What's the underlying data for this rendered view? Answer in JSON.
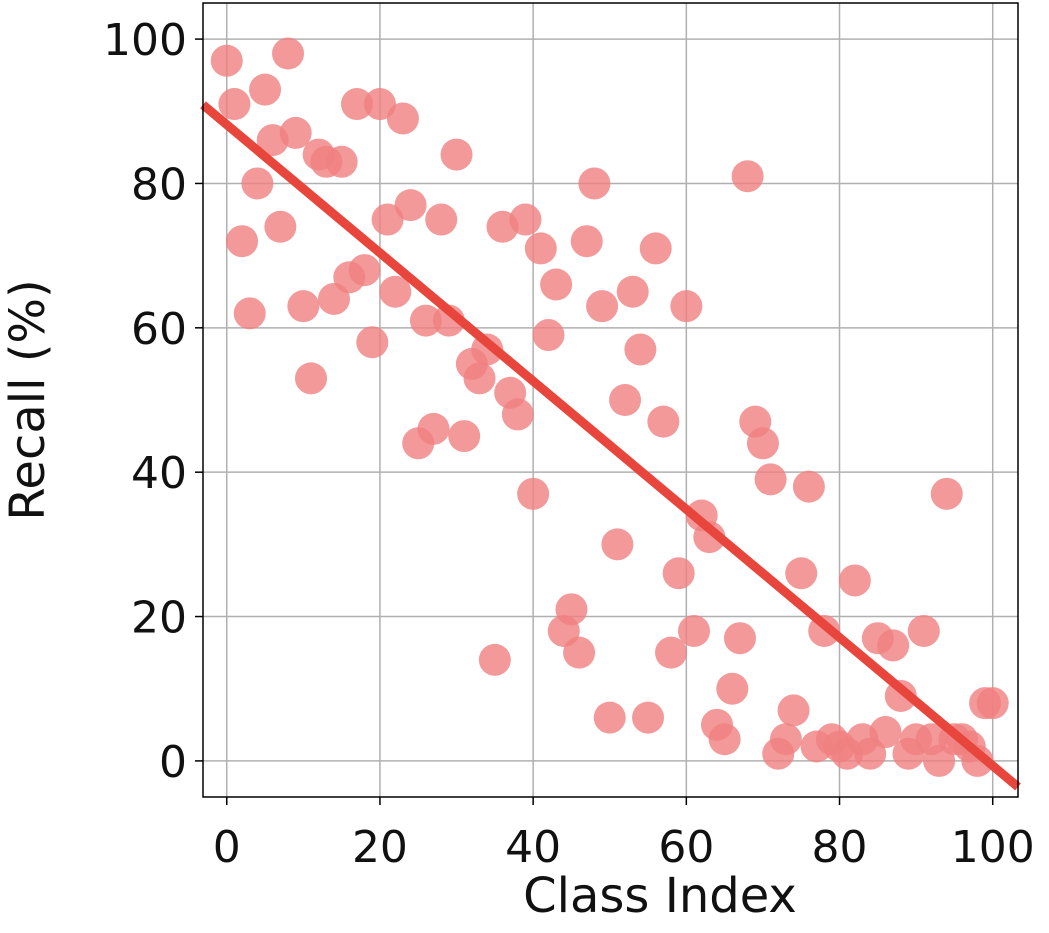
{
  "chart_data": {
    "type": "scatter",
    "x_label": "Class Index",
    "y_label": "Recall (%)",
    "x": [
      0,
      1,
      2,
      3,
      4,
      5,
      6,
      7,
      8,
      9,
      10,
      11,
      12,
      13,
      14,
      15,
      16,
      17,
      18,
      19,
      20,
      21,
      22,
      23,
      24,
      25,
      26,
      27,
      28,
      29,
      30,
      31,
      32,
      33,
      34,
      35,
      36,
      37,
      38,
      39,
      40,
      41,
      42,
      43,
      44,
      45,
      46,
      47,
      48,
      49,
      50,
      51,
      52,
      53,
      54,
      55,
      56,
      57,
      58,
      59,
      60,
      61,
      62,
      63,
      64,
      65,
      66,
      67,
      68,
      69,
      70,
      71,
      72,
      73,
      74,
      75,
      76,
      77,
      78,
      79,
      80,
      81,
      82,
      83,
      84,
      85,
      86,
      87,
      88,
      89,
      90,
      91,
      92,
      93,
      94,
      95,
      96,
      97,
      98,
      99,
      100
    ],
    "y": [
      97,
      91,
      72,
      62,
      80,
      93,
      86,
      74,
      98,
      87,
      63,
      53,
      84,
      83,
      64,
      83,
      67,
      91,
      68,
      58,
      91,
      75,
      65,
      89,
      77,
      44,
      61,
      46,
      75,
      61,
      84,
      45,
      55,
      53,
      57,
      14,
      74,
      51,
      48,
      75,
      37,
      71,
      59,
      66,
      18,
      21,
      15,
      72,
      80,
      63,
      6,
      30,
      50,
      65,
      57,
      6,
      71,
      47,
      15,
      26,
      63,
      18,
      34,
      31,
      5,
      3,
      10,
      17,
      81,
      47,
      44,
      39,
      1,
      3,
      7,
      26,
      38,
      2,
      18,
      3,
      2,
      1,
      25,
      3,
      1,
      17,
      4,
      16,
      9,
      1,
      3,
      18,
      3,
      0,
      37,
      3,
      3,
      2,
      0,
      8,
      8
    ],
    "color": "#f08080",
    "trend_line": {
      "x": [
        -3.1,
        103.3
      ],
      "y": [
        90.9,
        -3.6
      ],
      "color": "#e8453c"
    },
    "xlim": [
      -3.1,
      103.3
    ],
    "ylim": [
      -5,
      105
    ],
    "xticks": [
      0,
      20,
      40,
      60,
      80,
      100
    ],
    "yticks": [
      0,
      20,
      40,
      60,
      80,
      100
    ],
    "grid": true
  }
}
